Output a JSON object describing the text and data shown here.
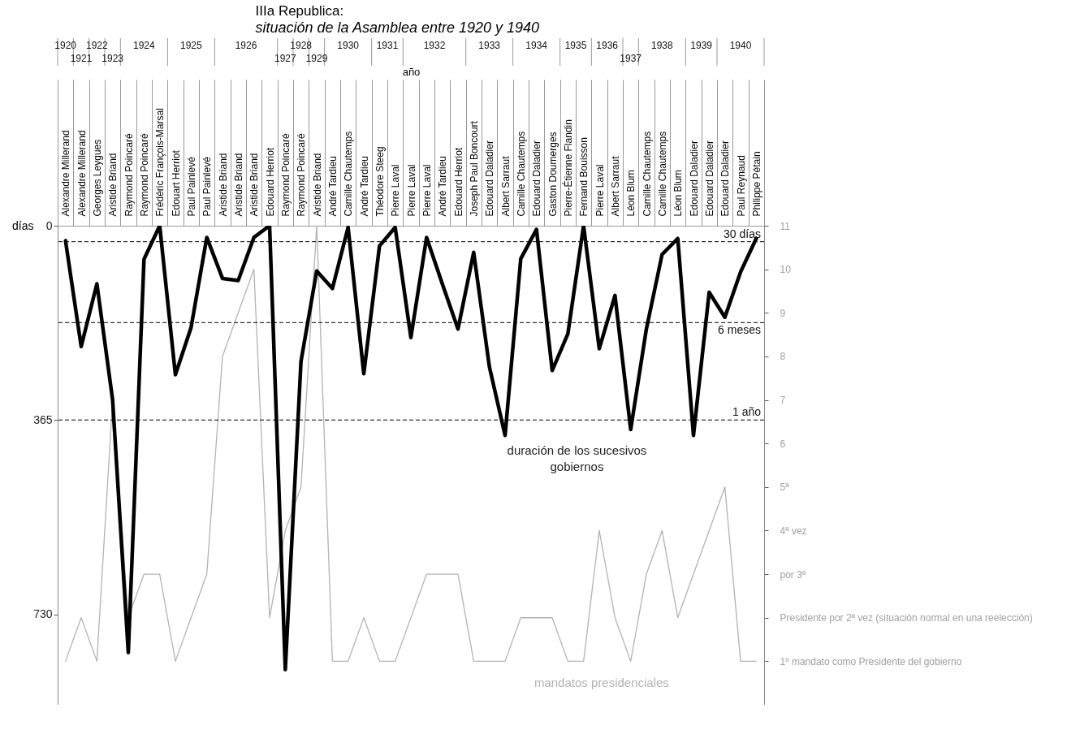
{
  "chart_data": {
    "type": "line",
    "title": "IIIa Republica:",
    "subtitle": "situación de la Asamblea entre 1920 y 1940",
    "xlabel": "año",
    "ylabel": "días",
    "categories": [
      "Alexandre Millerand",
      "Alexandre Millerand",
      "Georges Leygues",
      "Aristide Briand",
      "Raymond Poincaré",
      "Raymond Poincaré",
      "Frédéric François-Marsal",
      "Edouart Herriot",
      "Paul Painlevé",
      "Paul Painlevé",
      "Aristide Briand",
      "Aristide Briand",
      "Aristide Briand",
      "Edouard Herriot",
      "Raymond Poincaré",
      "Raymond Poincaré",
      "Aristide Briand",
      "André Tardieu",
      "Camille Chautemps",
      "André Tardieu",
      "Théodore Steeg",
      "Pierre Laval",
      "Pierre Laval",
      "Pierre Laval",
      "André Tardieu",
      "Edouard Herriot",
      "Joseph Paul Boncourt",
      "Edouard Daladier",
      "Albert Sarraut",
      "Camille Chautemps",
      "Edouard Daladier",
      "Gaston Doumerges",
      "Pierre-Étienne Flandin",
      "Fernand Bouisson",
      "Pierre Laval",
      "Albert Sarraut",
      "Léon Blum",
      "Camille Chautemps",
      "Camille Chautemps",
      "Léon Blum",
      "Edouard Daladier",
      "Edouard Daladier",
      "Edouard Daladier",
      "Paul Reynaud",
      "Philippe Pétain"
    ],
    "series": [
      {
        "name": "duración de los sucesivos gobiernos",
        "color": "#000000",
        "values": [
          28,
          227,
          109,
          327,
          802,
          63,
          0,
          280,
          191,
          22,
          99,
          103,
          22,
          0,
          834,
          255,
          85,
          118,
          3,
          278,
          38,
          3,
          210,
          22,
          109,
          194,
          50,
          265,
          394,
          62,
          7,
          272,
          203,
          0,
          231,
          131,
          383,
          194,
          54,
          24,
          394,
          125,
          172,
          87,
          24
        ]
      },
      {
        "name": "mandatos presidenciales",
        "color": "#b3b3b3",
        "axis": "y2",
        "values": [
          1,
          2,
          1,
          7,
          2,
          3,
          3,
          1,
          2,
          3,
          8,
          9,
          10,
          2,
          4,
          5,
          11,
          1,
          1,
          2,
          1,
          1,
          2,
          3,
          3,
          3,
          1,
          1,
          1,
          2,
          2,
          2,
          1,
          1,
          4,
          2,
          1,
          3,
          4,
          2,
          3,
          4,
          5,
          1,
          1
        ]
      }
    ],
    "ylim": [
      900,
      0
    ],
    "yticks": [
      0,
      365,
      730
    ],
    "y2lim": [
      0,
      11
    ],
    "y2ticks": [
      {
        "value": 1,
        "label": "1º mandato como Presidente del gobierno"
      },
      {
        "value": 2,
        "label": "Presidente por 2ª vez (situación normal en una reelección)"
      },
      {
        "value": 3,
        "label": "por 3ª"
      },
      {
        "value": 4,
        "label": "4ª vez"
      },
      {
        "value": 5,
        "label": "5ª"
      },
      6,
      7,
      8,
      9,
      10,
      11
    ],
    "ref_lines": [
      {
        "axis": "y",
        "value": 30,
        "label": "30 días",
        "line_style": "dashed"
      },
      {
        "axis": "y",
        "value": 182,
        "label": "6 meses",
        "line_style": "dashed"
      },
      {
        "axis": "y",
        "value": 365,
        "label": "1 año",
        "line_style": "dashed"
      }
    ],
    "annotations": [
      "1920",
      "1921",
      "1922",
      "1923",
      "1924",
      "1925",
      "1926",
      "1927",
      "1928",
      "1929",
      "1930",
      "1931",
      "1932",
      "1933",
      "1934",
      "1935",
      "1936",
      "1937",
      "1938",
      "1939",
      "1940"
    ]
  }
}
